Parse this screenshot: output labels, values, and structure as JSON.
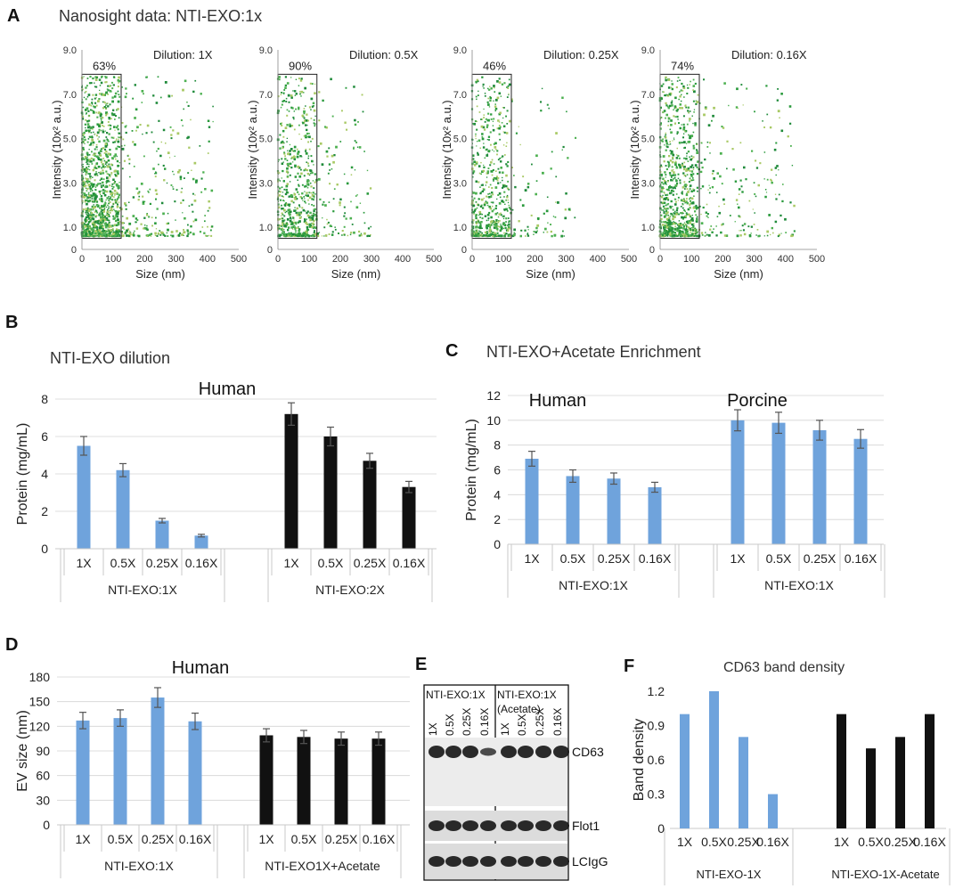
{
  "panels": {
    "A": {
      "label": "A",
      "title": "Nanosight data: NTI-EXO:1x"
    },
    "B": {
      "label": "B",
      "title": "NTI-EXO dilution"
    },
    "C": {
      "label": "C",
      "title": "NTI-EXO+Acetate Enrichment"
    },
    "D": {
      "label": "D",
      "title": ""
    },
    "E": {
      "label": "E",
      "title": ""
    },
    "F": {
      "label": "F",
      "title": "CD63 band density"
    }
  },
  "colors": {
    "blue": "#6fa3dc",
    "black": "#111111",
    "green_dark": "#2a9a3c",
    "green_mid": "#4cb050",
    "green_light": "#a8c964",
    "err": "#555555",
    "grid": "#d4d4d4"
  },
  "chart_data": [
    {
      "id": "A",
      "type": "scatter",
      "title": "Nanosight data: NTI-EXO:1x",
      "xlabel": "Size (nm)",
      "ylabel": "Intensity (10x² a.u.)",
      "xlim": [
        0,
        500
      ],
      "ylim": [
        0,
        9
      ],
      "xticks": [
        "0",
        "100",
        "200",
        "300",
        "400",
        "500"
      ],
      "yticks": [
        "0",
        "1.0",
        "3.0",
        "5.0",
        "7.0",
        "9.0"
      ],
      "gate": {
        "x": [
          0,
          125
        ],
        "y": [
          0.5,
          7.9
        ]
      },
      "subplots": [
        {
          "dilution": "Dilution: 1X",
          "percent": "63%",
          "n": 1500,
          "maxSize": 420,
          "seed": 11
        },
        {
          "dilution": "Dilution: 0.5X",
          "percent": "90%",
          "n": 700,
          "maxSize": 300,
          "seed": 23
        },
        {
          "dilution": "Dilution: 0.25X",
          "percent": "46%",
          "n": 650,
          "maxSize": 330,
          "seed": 37
        },
        {
          "dilution": "Dilution: 0.16X",
          "percent": "74%",
          "n": 1000,
          "maxSize": 430,
          "seed": 51
        }
      ]
    },
    {
      "id": "B",
      "type": "bar",
      "title": "Human",
      "ylabel": "Protein (mg/mL)",
      "ylim": [
        0,
        8
      ],
      "yticks": [
        0,
        2,
        4,
        6,
        8
      ],
      "categories": [
        "1X",
        "0.5X",
        "0.25X",
        "0.16X"
      ],
      "groups": [
        {
          "name": "NTI-EXO:1X",
          "color": "#6fa3dc",
          "values": [
            5.5,
            4.2,
            1.5,
            0.7
          ],
          "errors": [
            0.5,
            0.35,
            0.12,
            0.07
          ]
        },
        {
          "name": "NTI-EXO:2X",
          "color": "#111111",
          "values": [
            7.2,
            6.0,
            4.7,
            3.3
          ],
          "errors": [
            0.6,
            0.5,
            0.4,
            0.3
          ]
        }
      ]
    },
    {
      "id": "C",
      "type": "bar",
      "title": "",
      "ylabel": "Protein (mg/mL)",
      "ylim": [
        0,
        12
      ],
      "yticks": [
        0,
        2,
        4,
        6,
        8,
        10,
        12
      ],
      "categories": [
        "1X",
        "0.5X",
        "0.25X",
        "0.16X"
      ],
      "subtitles": [
        "Human",
        "Porcine"
      ],
      "groups": [
        {
          "name": "NTI-EXO:1X",
          "color": "#6fa3dc",
          "values": [
            6.9,
            5.5,
            5.3,
            4.6
          ],
          "errors": [
            0.6,
            0.5,
            0.45,
            0.4
          ]
        },
        {
          "name": "NTI-EXO:1X",
          "color": "#6fa3dc",
          "values": [
            10.0,
            9.8,
            9.2,
            8.5
          ],
          "errors": [
            0.85,
            0.85,
            0.8,
            0.75
          ]
        }
      ]
    },
    {
      "id": "D",
      "type": "bar",
      "title": "Human",
      "ylabel": "EV size (nm)",
      "ylim": [
        0,
        180
      ],
      "yticks": [
        0,
        30,
        60,
        90,
        120,
        150,
        180
      ],
      "categories": [
        "1X",
        "0.5X",
        "0.25X",
        "0.16X"
      ],
      "groups": [
        {
          "name": "NTI-EXO:1X",
          "color": "#6fa3dc",
          "values": [
            127,
            130,
            155,
            126
          ],
          "errors": [
            10,
            10,
            12,
            10
          ]
        },
        {
          "name": "NTI-EXO1X+Acetate",
          "color": "#111111",
          "values": [
            109,
            107,
            105,
            105
          ],
          "errors": [
            8,
            8,
            8,
            8
          ]
        }
      ]
    },
    {
      "id": "F",
      "type": "bar",
      "title": "CD63 band density",
      "ylabel": "Band density",
      "ylim": [
        0,
        1.2
      ],
      "yticks": [
        "0",
        "0.3",
        "0.6",
        "0.9",
        "1.2"
      ],
      "categories": [
        "1X",
        "0.5X",
        "0.25X",
        "0.16X"
      ],
      "groups": [
        {
          "name": "NTI-EXO-1X",
          "color": "#6fa3dc",
          "values": [
            1.0,
            1.2,
            0.8,
            0.3
          ]
        },
        {
          "name": "NTI-EXO-1X-Acetate",
          "color": "#111111",
          "values": [
            1.0,
            0.7,
            0.8,
            1.0
          ]
        }
      ]
    }
  ],
  "blot": {
    "groups": [
      "NTI-EXO:1X",
      "NTI-EXO:1X",
      "(Acetate)"
    ],
    "lanes": [
      "1X",
      "0.5X",
      "0.25X",
      "0.16X",
      "1X",
      "0.5X",
      "0.25X",
      "0.16X"
    ],
    "bands": [
      "CD63",
      "Flot1",
      "LCIgG"
    ]
  }
}
